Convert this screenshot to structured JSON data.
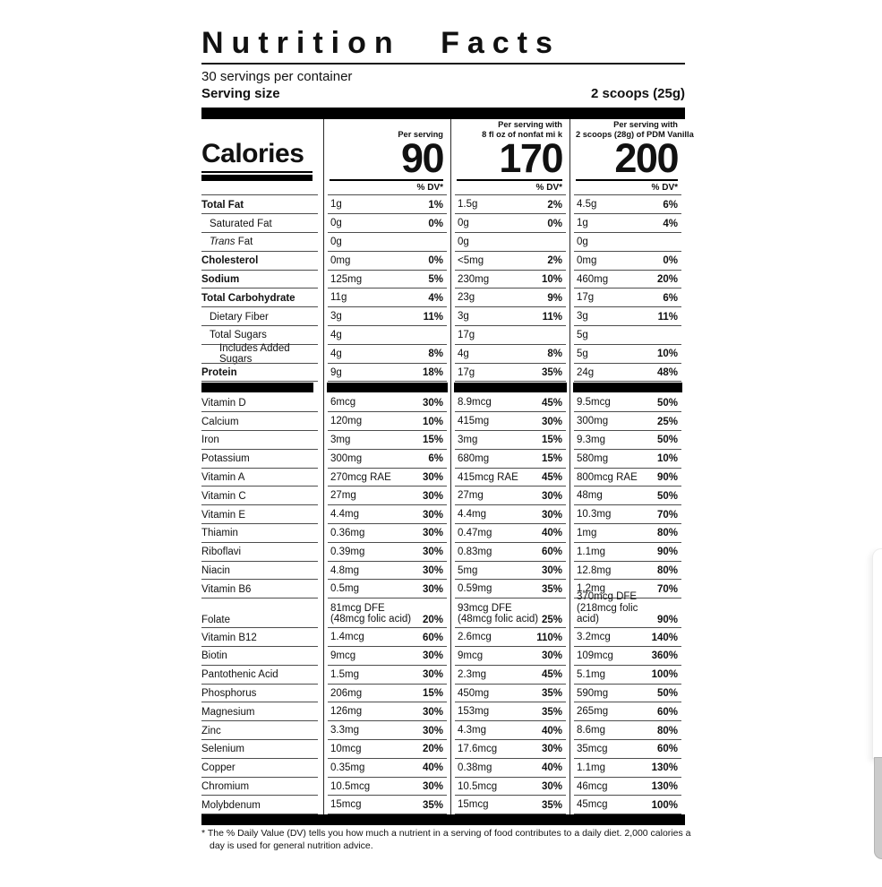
{
  "header": {
    "title": "Nutrition Facts",
    "servings_per_container": "30 servings per container",
    "serving_size_label": "Serving size",
    "serving_size_value": "2 scoops (25g)"
  },
  "calories": {
    "label": "Calories",
    "dv_label": "% DV*",
    "columns": [
      {
        "header_lines": [
          "Per serving"
        ],
        "value": "90"
      },
      {
        "header_lines": [
          "Per serving with",
          "8 fl oz of nonfat mi k"
        ],
        "value": "170"
      },
      {
        "header_lines": [
          "Per serving with",
          "2 scoops (28g) of PDM Vanilla"
        ],
        "value": "200"
      }
    ]
  },
  "rows": [
    {
      "label": "Total Fat",
      "bold": true,
      "indent": 0,
      "cols": [
        [
          "1g",
          "1%"
        ],
        [
          "1.5g",
          "2%"
        ],
        [
          "4.5g",
          "6%"
        ]
      ]
    },
    {
      "label": "Saturated Fat",
      "indent": 1,
      "cols": [
        [
          "0g",
          "0%"
        ],
        [
          "0g",
          "0%"
        ],
        [
          "1g",
          "4%"
        ]
      ]
    },
    {
      "label": "Trans Fat",
      "italic_prefix": "Trans",
      "indent": 1,
      "cols": [
        [
          "0g",
          ""
        ],
        [
          "0g",
          ""
        ],
        [
          "0g",
          ""
        ]
      ]
    },
    {
      "label": "Cholesterol",
      "bold": true,
      "indent": 0,
      "cols": [
        [
          "0mg",
          "0%"
        ],
        [
          "<5mg",
          "2%"
        ],
        [
          "0mg",
          "0%"
        ]
      ]
    },
    {
      "label": "Sodium",
      "bold": true,
      "indent": 0,
      "cols": [
        [
          "125mg",
          "5%"
        ],
        [
          "230mg",
          "10%"
        ],
        [
          "460mg",
          "20%"
        ]
      ]
    },
    {
      "label": "Total Carbohydrate",
      "bold": true,
      "indent": 0,
      "cols": [
        [
          "11g",
          "4%"
        ],
        [
          "23g",
          "9%"
        ],
        [
          "17g",
          "6%"
        ]
      ]
    },
    {
      "label": "Dietary Fiber",
      "indent": 1,
      "cols": [
        [
          "3g",
          "11%"
        ],
        [
          "3g",
          "11%"
        ],
        [
          "3g",
          "11%"
        ]
      ]
    },
    {
      "label": "Total Sugars",
      "indent": 1,
      "cols": [
        [
          "4g",
          ""
        ],
        [
          "17g",
          ""
        ],
        [
          "5g",
          ""
        ]
      ]
    },
    {
      "label": "Includes Added Sugars",
      "indent": 2,
      "cols": [
        [
          "4g",
          "8%"
        ],
        [
          "4g",
          "8%"
        ],
        [
          "5g",
          "10%"
        ]
      ]
    },
    {
      "label": "Protein",
      "bold": true,
      "indent": 0,
      "cols": [
        [
          "9g",
          "18%"
        ],
        [
          "17g",
          "35%"
        ],
        [
          "24g",
          "48%"
        ]
      ]
    },
    {
      "type": "bar"
    },
    {
      "label": "Vitamin D",
      "cols": [
        [
          "6mcg",
          "30%"
        ],
        [
          "8.9mcg",
          "45%"
        ],
        [
          "9.5mcg",
          "50%"
        ]
      ]
    },
    {
      "label": "Calcium",
      "cols": [
        [
          "120mg",
          "10%"
        ],
        [
          "415mg",
          "30%"
        ],
        [
          "300mg",
          "25%"
        ]
      ]
    },
    {
      "label": "Iron",
      "cols": [
        [
          "3mg",
          "15%"
        ],
        [
          "3mg",
          "15%"
        ],
        [
          "9.3mg",
          "50%"
        ]
      ]
    },
    {
      "label": "Potassium",
      "cols": [
        [
          "300mg",
          "6%"
        ],
        [
          "680mg",
          "15%"
        ],
        [
          "580mg",
          "10%"
        ]
      ]
    },
    {
      "label": "Vitamin A",
      "cols": [
        [
          "270mcg RAE",
          "30%"
        ],
        [
          "415mcg RAE",
          "45%"
        ],
        [
          "800mcg RAE",
          "90%"
        ]
      ]
    },
    {
      "label": "Vitamin C",
      "cols": [
        [
          "27mg",
          "30%"
        ],
        [
          "27mg",
          "30%"
        ],
        [
          "48mg",
          "50%"
        ]
      ]
    },
    {
      "label": "Vitamin E",
      "cols": [
        [
          "4.4mg",
          "30%"
        ],
        [
          "4.4mg",
          "30%"
        ],
        [
          "10.3mg",
          "70%"
        ]
      ]
    },
    {
      "label": "Thiamin",
      "cols": [
        [
          "0.36mg",
          "30%"
        ],
        [
          "0.47mg",
          "40%"
        ],
        [
          "1mg",
          "80%"
        ]
      ]
    },
    {
      "label": "Riboflavi",
      "cols": [
        [
          "0.39mg",
          "30%"
        ],
        [
          "0.83mg",
          "60%"
        ],
        [
          "1.1mg",
          "90%"
        ]
      ]
    },
    {
      "label": "Niacin",
      "cols": [
        [
          "4.8mg",
          "30%"
        ],
        [
          "5mg",
          "30%"
        ],
        [
          "12.8mg",
          "80%"
        ]
      ]
    },
    {
      "label": "Vitamin B6",
      "cols": [
        [
          "0.5mg",
          "30%"
        ],
        [
          "0.59mg",
          "35%"
        ],
        [
          "1.2mg",
          "70%"
        ]
      ]
    },
    {
      "label": "Folate",
      "tall": true,
      "cols": [
        [
          "81mcg DFE\n(48mcg folic acid)",
          "20%"
        ],
        [
          "93mcg DFE\n(48mcg folic acid)",
          "25%"
        ],
        [
          "370mcg DFE\n(218mcg folic acid)",
          "90%"
        ]
      ]
    },
    {
      "label": "Vitamin B12",
      "cols": [
        [
          "1.4mcg",
          "60%"
        ],
        [
          "2.6mcg",
          "110%"
        ],
        [
          "3.2mcg",
          "140%"
        ]
      ]
    },
    {
      "label": "Biotin",
      "cols": [
        [
          "9mcg",
          "30%"
        ],
        [
          "9mcg",
          "30%"
        ],
        [
          "109mcg",
          "360%"
        ]
      ]
    },
    {
      "label": "Pantothenic Acid",
      "cols": [
        [
          "1.5mg",
          "30%"
        ],
        [
          "2.3mg",
          "45%"
        ],
        [
          "5.1mg",
          "100%"
        ]
      ]
    },
    {
      "label": "Phosphorus",
      "cols": [
        [
          "206mg",
          "15%"
        ],
        [
          "450mg",
          "35%"
        ],
        [
          "590mg",
          "50%"
        ]
      ]
    },
    {
      "label": "Magnesium",
      "cols": [
        [
          "126mg",
          "30%"
        ],
        [
          "153mg",
          "35%"
        ],
        [
          "265mg",
          "60%"
        ]
      ]
    },
    {
      "label": "Zinc",
      "cols": [
        [
          "3.3mg",
          "30%"
        ],
        [
          "4.3mg",
          "40%"
        ],
        [
          "8.6mg",
          "80%"
        ]
      ]
    },
    {
      "label": "Selenium",
      "cols": [
        [
          "10mcg",
          "20%"
        ],
        [
          "17.6mcg",
          "30%"
        ],
        [
          "35mcg",
          "60%"
        ]
      ]
    },
    {
      "label": "Copper",
      "cols": [
        [
          "0.35mg",
          "40%"
        ],
        [
          "0.38mg",
          "40%"
        ],
        [
          "1.1mg",
          "130%"
        ]
      ]
    },
    {
      "label": "Chromium",
      "cols": [
        [
          "10.5mcg",
          "30%"
        ],
        [
          "10.5mcg",
          "30%"
        ],
        [
          "46mcg",
          "130%"
        ]
      ]
    },
    {
      "label": "Molybdenum",
      "cols": [
        [
          "15mcg",
          "35%"
        ],
        [
          "15mcg",
          "35%"
        ],
        [
          "45mcg",
          "100%"
        ]
      ]
    }
  ],
  "footnote": "* The % Daily Value (DV) tells you how much a nutrient in a serving of food contributes to a daily diet. 2,000 calories a day is used for general nutrition advice.",
  "colors": {
    "bar_black": "#000000",
    "rule_gray": "#4d4d4d",
    "text": "#111111",
    "peek_gray": "#cbcbcb"
  }
}
